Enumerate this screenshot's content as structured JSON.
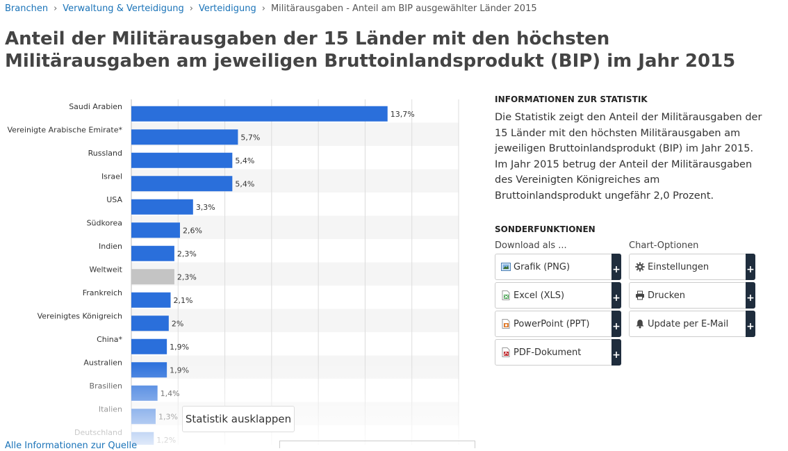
{
  "breadcrumb": {
    "items": [
      "Branchen",
      "Verwaltung & Verteidigung",
      "Verteidigung"
    ],
    "current": "Militärausgaben - Anteil am BIP ausgewählter Länder 2015",
    "separator": "›"
  },
  "page_title": "Anteil der Militärausgaben der 15 Länder mit den höchsten Militärausgaben am jeweiligen Bruttoinlandsprodukt (BIP) im Jahr 2015",
  "chart_data": {
    "type": "bar",
    "orientation": "horizontal",
    "categories": [
      "Saudi Arabien",
      "Vereinigte Arabische Emirate*",
      "Russland",
      "Israel",
      "USA",
      "Südkorea",
      "Indien",
      "Weltweit",
      "Frankreich",
      "Vereinigtes Königreich",
      "China*",
      "Australien",
      "Brasilien",
      "Italien",
      "Deutschland"
    ],
    "values": [
      13.7,
      5.7,
      5.4,
      5.4,
      3.3,
      2.6,
      2.3,
      2.3,
      2.1,
      2.0,
      1.9,
      1.9,
      1.4,
      1.3,
      1.2
    ],
    "value_labels": [
      "13,7%",
      "5,7%",
      "5,4%",
      "5,4%",
      "3,3%",
      "2,6%",
      "2,3%",
      "2,3%",
      "2,1%",
      "2%",
      "1,9%",
      "1,9%",
      "1,4%",
      "1,3%",
      "1,2%"
    ],
    "highlight_category": "Weltweit",
    "xlim": [
      0,
      17.5
    ],
    "grid": true,
    "colors": {
      "bar": "#2a6fdb",
      "highlight": "#c4c4c4",
      "alt_row": "#f5f5f5"
    }
  },
  "info": {
    "heading": "INFORMATIONEN ZUR STATISTIK",
    "text": "Die Statistik zeigt den Anteil der Militärausgaben der 15 Länder mit den höchsten Militärausgaben am jeweiligen Bruttoinlandsprodukt (BIP) im Jahr 2015. Im Jahr 2015 betrug der Anteil der Militärausgaben des Vereinigten Königreiches am Bruttoinlandsprodukt ungefähr 2,0 Prozent."
  },
  "special": {
    "heading": "SONDERFUNKTIONEN",
    "download_label": "Download als ...",
    "chart_options_label": "Chart-Optionen",
    "download_buttons": [
      "Grafik (PNG)",
      "Excel (XLS)",
      "PowerPoint (PPT)",
      "PDF-Dokument"
    ],
    "download_icons": [
      "image-file-icon",
      "excel-file-icon",
      "powerpoint-file-icon",
      "pdf-file-icon"
    ],
    "option_buttons": [
      "Einstellungen",
      "Drucken",
      "Update per E-Mail"
    ],
    "option_icons": [
      "gear-icon",
      "printer-icon",
      "bell-icon"
    ],
    "plus": "+"
  },
  "expand_button": "Statistik ausklappen",
  "bottom_link": "Alle Informationen zur Quelle"
}
